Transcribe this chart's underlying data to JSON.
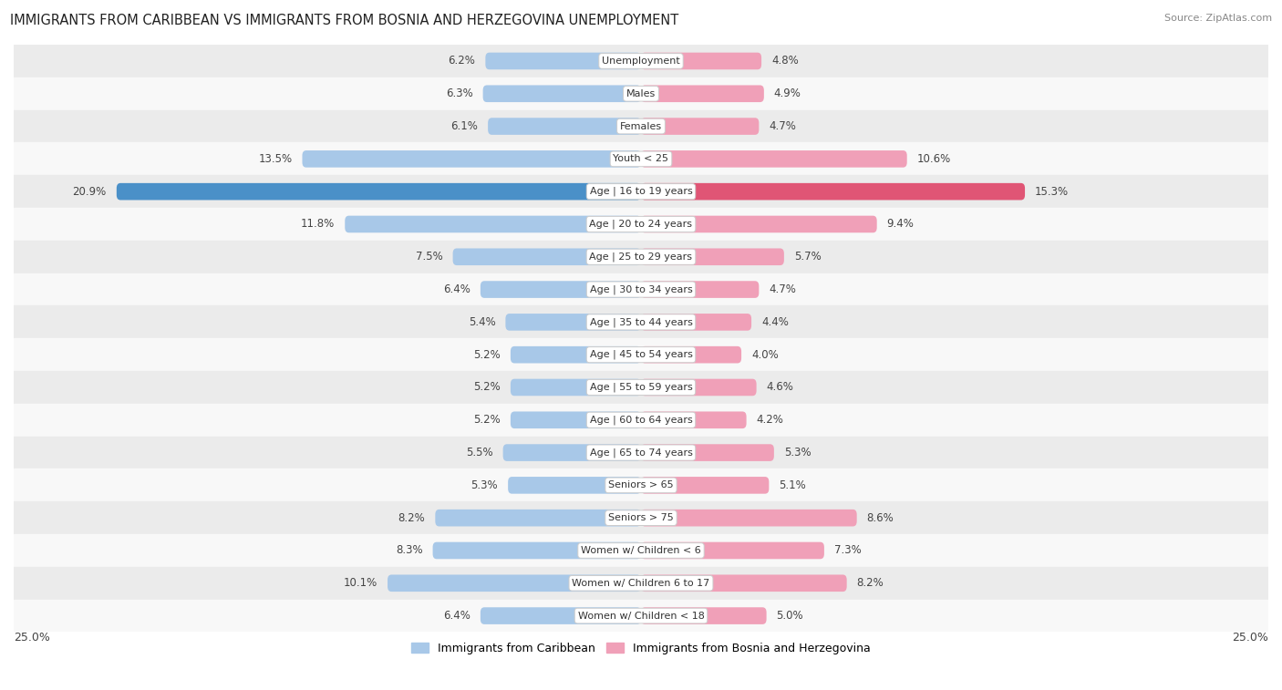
{
  "title": "IMMIGRANTS FROM CARIBBEAN VS IMMIGRANTS FROM BOSNIA AND HERZEGOVINA UNEMPLOYMENT",
  "source": "Source: ZipAtlas.com",
  "categories": [
    "Unemployment",
    "Males",
    "Females",
    "Youth < 25",
    "Age | 16 to 19 years",
    "Age | 20 to 24 years",
    "Age | 25 to 29 years",
    "Age | 30 to 34 years",
    "Age | 35 to 44 years",
    "Age | 45 to 54 years",
    "Age | 55 to 59 years",
    "Age | 60 to 64 years",
    "Age | 65 to 74 years",
    "Seniors > 65",
    "Seniors > 75",
    "Women w/ Children < 6",
    "Women w/ Children 6 to 17",
    "Women w/ Children < 18"
  ],
  "left_values": [
    6.2,
    6.3,
    6.1,
    13.5,
    20.9,
    11.8,
    7.5,
    6.4,
    5.4,
    5.2,
    5.2,
    5.2,
    5.5,
    5.3,
    8.2,
    8.3,
    10.1,
    6.4
  ],
  "right_values": [
    4.8,
    4.9,
    4.7,
    10.6,
    15.3,
    9.4,
    5.7,
    4.7,
    4.4,
    4.0,
    4.6,
    4.2,
    5.3,
    5.1,
    8.6,
    7.3,
    8.2,
    5.0
  ],
  "left_color": "#a8c8e8",
  "right_color": "#f0a0b8",
  "highlight_left_color": "#4a90c8",
  "highlight_right_color": "#e05575",
  "max_val": 25.0,
  "bar_height": 0.52,
  "bg_row_color": "#ebebeb",
  "bg_alt_color": "#f8f8f8",
  "legend_left": "Immigrants from Caribbean",
  "legend_right": "Immigrants from Bosnia and Herzegovina"
}
